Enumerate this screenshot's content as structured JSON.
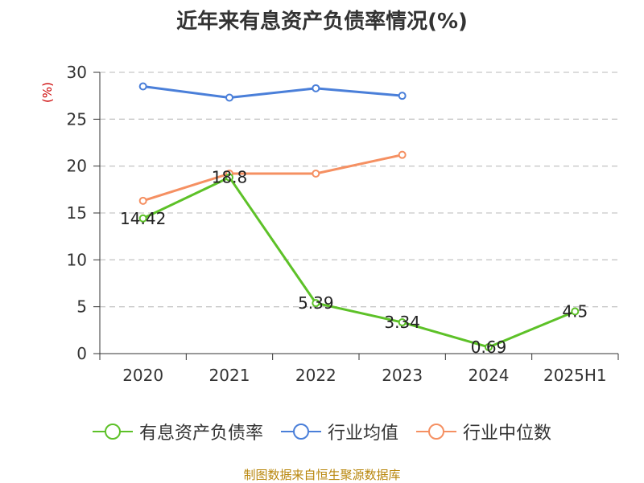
{
  "chart_data": {
    "type": "line",
    "title": "近年来有息资产负债率情况(%)",
    "ylabel": "(%)",
    "categories": [
      "2020",
      "2021",
      "2022",
      "2023",
      "2024",
      "2025H1"
    ],
    "ylim": [
      0,
      30
    ],
    "yticks": [
      0,
      5,
      10,
      15,
      20,
      25,
      30
    ],
    "grid": true,
    "legend_position": "bottom",
    "series": [
      {
        "name": "有息资产负债率",
        "color": "#5dc128",
        "values": [
          14.42,
          18.8,
          5.39,
          3.34,
          0.69,
          4.5
        ],
        "labels": [
          "14.42",
          "18.8",
          "5.39",
          "3.34",
          "0.69",
          "4.5"
        ]
      },
      {
        "name": "行业均值",
        "color": "#4a7fd9",
        "values": [
          28.5,
          27.3,
          28.3,
          27.5,
          null,
          null
        ]
      },
      {
        "name": "行业中位数",
        "color": "#f59062",
        "values": [
          16.3,
          19.2,
          19.2,
          21.2,
          null,
          null
        ]
      }
    ]
  },
  "footer": {
    "source": "制图数据来自恒生聚源数据库"
  }
}
